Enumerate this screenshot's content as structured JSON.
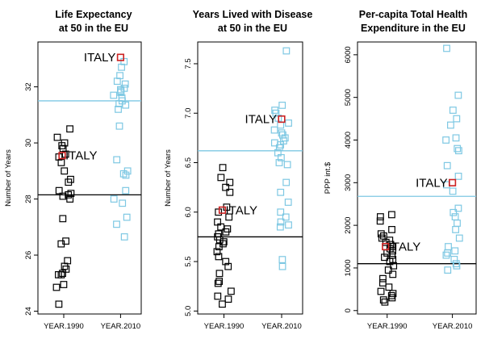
{
  "chart_data": [
    {
      "type": "scatter",
      "title": [
        "Life Expectancy",
        "at 50 in the EU"
      ],
      "ylabel": "Number of Years",
      "categories": [
        "YEAR.1990",
        "YEAR.2010"
      ],
      "ylim": [
        23.9,
        33.6
      ],
      "yticks": [
        24,
        26,
        28,
        30,
        32
      ],
      "ytick_labels": [
        "24",
        "26",
        "28",
        "30",
        "32"
      ],
      "grid": false,
      "series": [
        {
          "category": "YEAR.1990",
          "color": "#000000",
          "mean": 28.15,
          "points": [
            30.5,
            30.2,
            30.0,
            29.9,
            29.8,
            29.6,
            29.5,
            29.3,
            29.0,
            28.7,
            28.6,
            28.3,
            28.2,
            28.15,
            28.1,
            28.0,
            27.3,
            26.5,
            26.4,
            25.8,
            25.6,
            25.5,
            25.35,
            25.3,
            25.3,
            24.95,
            24.85,
            24.25
          ]
        },
        {
          "category": "YEAR.2010",
          "color": "#7ec8e3",
          "mean": 31.5,
          "points": [
            32.9,
            32.7,
            32.4,
            32.2,
            32.1,
            31.95,
            31.9,
            31.85,
            31.8,
            31.7,
            31.6,
            31.5,
            31.4,
            31.35,
            31.2,
            30.6,
            29.4,
            29.0,
            28.9,
            28.85,
            28.3,
            28.0,
            27.85,
            27.35,
            27.1,
            26.65
          ]
        }
      ],
      "highlight": {
        "label": "ITALY",
        "color": "#cc2222",
        "values": [
          29.55,
          33.05
        ]
      }
    },
    {
      "type": "scatter",
      "title": [
        "Years Lived with Disease",
        "at 50 in the EU"
      ],
      "ylabel": "Number of Years",
      "categories": [
        "YEAR.1990",
        "YEAR.2010"
      ],
      "ylim": [
        4.97,
        7.72
      ],
      "yticks": [
        5.0,
        5.5,
        6.0,
        6.5,
        7.0,
        7.5
      ],
      "ytick_labels": [
        "5.0",
        "5.5",
        "6.0",
        "6.5",
        "7.0",
        "7.5"
      ],
      "grid": false,
      "series": [
        {
          "category": "YEAR.1990",
          "color": "#000000",
          "mean": 5.75,
          "points": [
            6.45,
            6.35,
            6.3,
            6.25,
            6.2,
            6.05,
            6.0,
            5.95,
            5.9,
            5.85,
            5.83,
            5.8,
            5.78,
            5.75,
            5.72,
            5.7,
            5.68,
            5.65,
            5.6,
            5.55,
            5.5,
            5.45,
            5.38,
            5.3,
            5.28,
            5.2,
            5.15,
            5.12,
            5.07
          ]
        },
        {
          "category": "YEAR.2010",
          "color": "#7ec8e3",
          "mean": 6.62,
          "points": [
            7.63,
            7.08,
            7.03,
            7.0,
            6.95,
            6.9,
            6.88,
            6.83,
            6.8,
            6.78,
            6.75,
            6.72,
            6.7,
            6.68,
            6.65,
            6.6,
            6.55,
            6.5,
            6.48,
            6.3,
            6.2,
            6.1,
            6.0,
            5.95,
            5.9,
            5.87,
            5.85,
            5.52,
            5.45
          ]
        }
      ],
      "highlight": {
        "label": "ITALY",
        "color": "#cc2222",
        "values": [
          6.02,
          6.94
        ]
      }
    },
    {
      "type": "scatter",
      "title": [
        "Per-capita Total Health",
        "Expenditure in the EU"
      ],
      "ylabel": "PPP int.$",
      "categories": [
        "YEAR.1990",
        "YEAR.2010"
      ],
      "ylim": [
        -80,
        6300
      ],
      "yticks": [
        0,
        1000,
        2000,
        3000,
        4000,
        5000,
        6000
      ],
      "ytick_labels": [
        "0",
        "1000",
        "2000",
        "3000",
        "4000",
        "5000",
        "6000"
      ],
      "grid": false,
      "series": [
        {
          "category": "YEAR.1990",
          "color": "#000000",
          "mean": 1100,
          "points": [
            2250,
            2200,
            2100,
            1900,
            1800,
            1750,
            1700,
            1650,
            1600,
            1550,
            1500,
            1450,
            1400,
            1350,
            1300,
            1250,
            1200,
            1150,
            1050,
            950,
            850,
            750,
            650,
            550,
            450,
            400,
            350,
            300,
            250,
            200
          ]
        },
        {
          "category": "YEAR.2010",
          "color": "#7ec8e3",
          "mean": 2680,
          "points": [
            6150,
            5050,
            4700,
            4500,
            4350,
            4050,
            4000,
            3800,
            3750,
            3400,
            3150,
            2950,
            2800,
            2400,
            2300,
            2200,
            2050,
            1900,
            1700,
            1500,
            1400,
            1350,
            1300,
            1200,
            1100,
            1050,
            950
          ]
        }
      ],
      "highlight": {
        "label": "ITALY",
        "color": "#cc2222",
        "values": [
          1500,
          3000
        ]
      }
    }
  ]
}
